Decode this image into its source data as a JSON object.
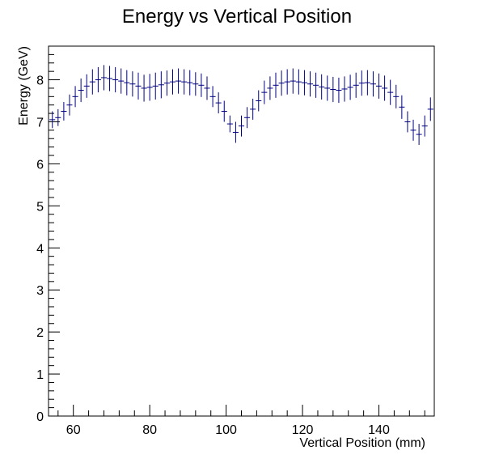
{
  "chart_data": {
    "type": "scatter",
    "title": "Energy vs Vertical Position",
    "xlabel": "Vertical Position (mm)",
    "ylabel": "Energy (GeV)",
    "xlim": [
      53.5,
      154.5
    ],
    "ylim": [
      0,
      8.8
    ],
    "grid": false,
    "legend": "none",
    "x_ticks": [
      60,
      80,
      100,
      120,
      140
    ],
    "y_ticks": [
      0,
      1,
      2,
      3,
      4,
      5,
      6,
      7,
      8
    ],
    "series": [
      {
        "color": "#000080",
        "bin_width": 1.5,
        "x": [
          54.5,
          56,
          57.5,
          59,
          60.5,
          62,
          63.5,
          65,
          66.5,
          68,
          69.5,
          71,
          72.5,
          74,
          75.5,
          77,
          78.5,
          80,
          81.5,
          83,
          84.5,
          86,
          87.5,
          89,
          90.5,
          92,
          93.5,
          95,
          96.5,
          98,
          99.5,
          101,
          102.5,
          104,
          105.5,
          107,
          108.5,
          110,
          111.5,
          113,
          114.5,
          116,
          117.5,
          119,
          120.5,
          122,
          123.5,
          125,
          126.5,
          128,
          129.5,
          131,
          132.5,
          134,
          135.5,
          137,
          138.5,
          140,
          141.5,
          143,
          144.5,
          146,
          147.5,
          149,
          150.5,
          152,
          153.5
        ],
        "y": [
          7.05,
          7.1,
          7.25,
          7.4,
          7.6,
          7.75,
          7.85,
          7.95,
          8.0,
          8.05,
          8.03,
          8.0,
          7.97,
          7.93,
          7.9,
          7.85,
          7.8,
          7.82,
          7.85,
          7.88,
          7.92,
          7.95,
          7.97,
          7.95,
          7.93,
          7.9,
          7.87,
          7.8,
          7.6,
          7.45,
          7.25,
          6.95,
          6.75,
          6.9,
          7.1,
          7.3,
          7.5,
          7.7,
          7.8,
          7.87,
          7.92,
          7.95,
          7.97,
          7.95,
          7.93,
          7.9,
          7.87,
          7.83,
          7.8,
          7.77,
          7.75,
          7.78,
          7.82,
          7.87,
          7.92,
          7.93,
          7.9,
          7.85,
          7.8,
          7.7,
          7.6,
          7.35,
          7.0,
          6.8,
          6.7,
          6.9,
          7.3
        ],
        "err": [
          0.2,
          0.2,
          0.22,
          0.25,
          0.25,
          0.28,
          0.28,
          0.3,
          0.3,
          0.3,
          0.3,
          0.3,
          0.3,
          0.3,
          0.3,
          0.32,
          0.32,
          0.32,
          0.32,
          0.32,
          0.3,
          0.3,
          0.3,
          0.3,
          0.3,
          0.28,
          0.28,
          0.28,
          0.25,
          0.25,
          0.25,
          0.2,
          0.25,
          0.25,
          0.25,
          0.25,
          0.25,
          0.28,
          0.28,
          0.3,
          0.3,
          0.3,
          0.3,
          0.3,
          0.3,
          0.3,
          0.3,
          0.3,
          0.3,
          0.3,
          0.3,
          0.3,
          0.3,
          0.3,
          0.3,
          0.3,
          0.3,
          0.3,
          0.3,
          0.3,
          0.28,
          0.28,
          0.25,
          0.25,
          0.25,
          0.25,
          0.28
        ]
      }
    ]
  }
}
